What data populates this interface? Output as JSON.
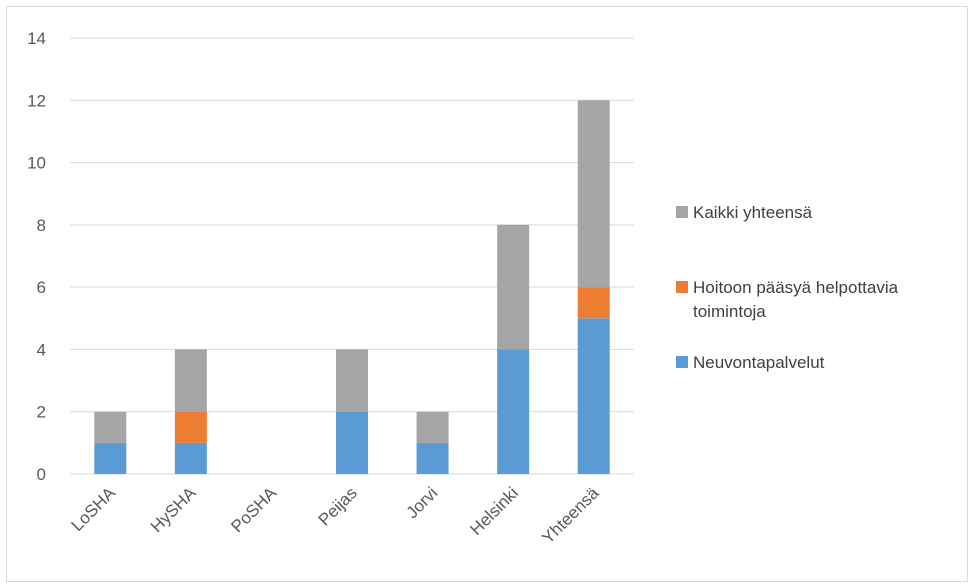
{
  "chart_data": {
    "type": "bar",
    "stacked": true,
    "categories": [
      "LoSHA",
      "HySHA",
      "PoSHA",
      "Peijas",
      "Jorvi",
      "Helsinki",
      "Yhteensä"
    ],
    "series": [
      {
        "name": "Neuvontapalvelut",
        "values": [
          1,
          1,
          0,
          2,
          1,
          4,
          5
        ],
        "color": "#5b9bd5"
      },
      {
        "name": "Hoitoon pääsyä helpottavia toimintoja",
        "values": [
          0,
          1,
          0,
          0,
          0,
          0,
          1
        ],
        "color": "#ed7d31"
      },
      {
        "name": "Kaikki yhteensä",
        "values": [
          1,
          2,
          0,
          2,
          1,
          4,
          6
        ],
        "color": "#a5a5a5"
      }
    ],
    "legend_order": [
      "Kaikki yhteensä",
      "Hoitoon pääsyä helpottavia toimintoja",
      "Neuvontapalvelut"
    ],
    "ylim": [
      0,
      14
    ],
    "yticks": [
      0,
      2,
      4,
      6,
      8,
      10,
      12,
      14
    ],
    "grid": true,
    "legend_position": "right",
    "title": "",
    "xlabel": "",
    "ylabel": ""
  }
}
